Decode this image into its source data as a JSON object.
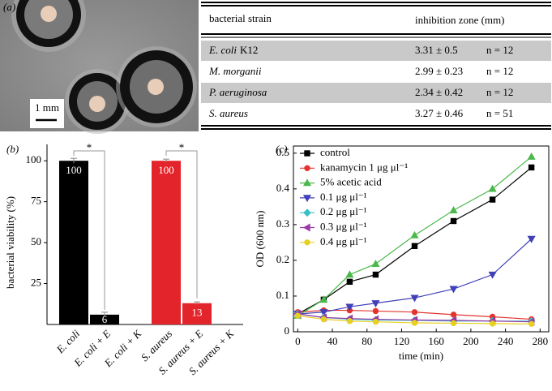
{
  "panel_a": {
    "label": "(a)",
    "scale_bar": "1 mm",
    "table": {
      "header": [
        "bacterial strain",
        "inhibition zone (mm)"
      ],
      "rows": [
        {
          "strain": "E. coli",
          "strain_suffix": "K12",
          "zone": "3.31 ± 0.5",
          "n": "n = 12"
        },
        {
          "strain": "M. morganii",
          "zone": "2.99 ± 0.23",
          "n": "n = 12"
        },
        {
          "strain": "P. aeruginosa",
          "zone": "2.34 ± 0.42",
          "n": "n = 12"
        },
        {
          "strain": "S. aureus",
          "zone": "3.27 ± 0.46",
          "n": "n = 51"
        }
      ]
    }
  },
  "chart_data": [
    {
      "type": "bar",
      "panel_label": "(b)",
      "ylabel": "bacterial viability (%)",
      "categories": [
        "E. coli",
        "E. coli + E",
        "E. coli + K",
        "S. aureus",
        "S. aureus + E",
        "S. aureus + K"
      ],
      "values": [
        100,
        6,
        0,
        100,
        13,
        0
      ],
      "errors": [
        1.5,
        1.5,
        0,
        1,
        0.8,
        0
      ],
      "colors": [
        "#000000",
        "#000000",
        "#000000",
        "#e3242b",
        "#e3242b",
        "#e3242b"
      ],
      "ylim": [
        0,
        110
      ],
      "yticks": [
        25,
        50,
        75,
        100
      ],
      "significance": [
        {
          "between": [
            0,
            1
          ],
          "label": "*"
        },
        {
          "between": [
            3,
            4
          ],
          "label": "*"
        }
      ]
    },
    {
      "type": "line",
      "panel_label": "(c)",
      "xlabel": "time (min)",
      "ylabel": "OD (600 nm)",
      "x": [
        0,
        30,
        60,
        90,
        135,
        180,
        225,
        270
      ],
      "series": [
        {
          "name": "control",
          "color": "#000000",
          "marker": "square",
          "values": [
            0.05,
            0.09,
            0.14,
            0.16,
            0.24,
            0.31,
            0.37,
            0.46
          ]
        },
        {
          "name": "kanamycin 1 μg μl⁻¹",
          "color": "#e3342f",
          "marker": "circle",
          "values": [
            0.055,
            0.06,
            0.06,
            0.058,
            0.055,
            0.048,
            0.042,
            0.035
          ]
        },
        {
          "name": "5% acetic acid",
          "color": "#4cb84c",
          "marker": "triangle-up",
          "values": [
            0.045,
            0.09,
            0.16,
            0.19,
            0.27,
            0.34,
            0.4,
            0.49
          ]
        },
        {
          "name": "0.1 μg μl⁻¹",
          "color": "#4040b8",
          "marker": "triangle-down",
          "values": [
            0.05,
            0.055,
            0.07,
            0.08,
            0.095,
            0.12,
            0.16,
            0.26
          ]
        },
        {
          "name": "0.2 μg μl⁻¹",
          "color": "#38c0c8",
          "marker": "diamond",
          "values": [
            0.05,
            0.04,
            0.035,
            0.033,
            0.032,
            0.03,
            0.03,
            0.03
          ]
        },
        {
          "name": "0.3 μg μl⁻¹",
          "color": "#9a38a8",
          "marker": "triangle-left",
          "values": [
            0.05,
            0.04,
            0.037,
            0.035,
            0.033,
            0.032,
            0.03,
            0.028
          ]
        },
        {
          "name": "0.4 μg μl⁻¹",
          "color": "#e8d020",
          "marker": "circle",
          "values": [
            0.045,
            0.035,
            0.03,
            0.028,
            0.025,
            0.024,
            0.023,
            0.022
          ]
        }
      ],
      "xlim": [
        -5,
        290
      ],
      "ylim": [
        0,
        0.52
      ],
      "xticks": [
        0,
        40,
        80,
        120,
        160,
        200,
        240,
        280
      ],
      "yticks": [
        0,
        0.1,
        0.2,
        0.3,
        0.4,
        0.5
      ]
    }
  ]
}
